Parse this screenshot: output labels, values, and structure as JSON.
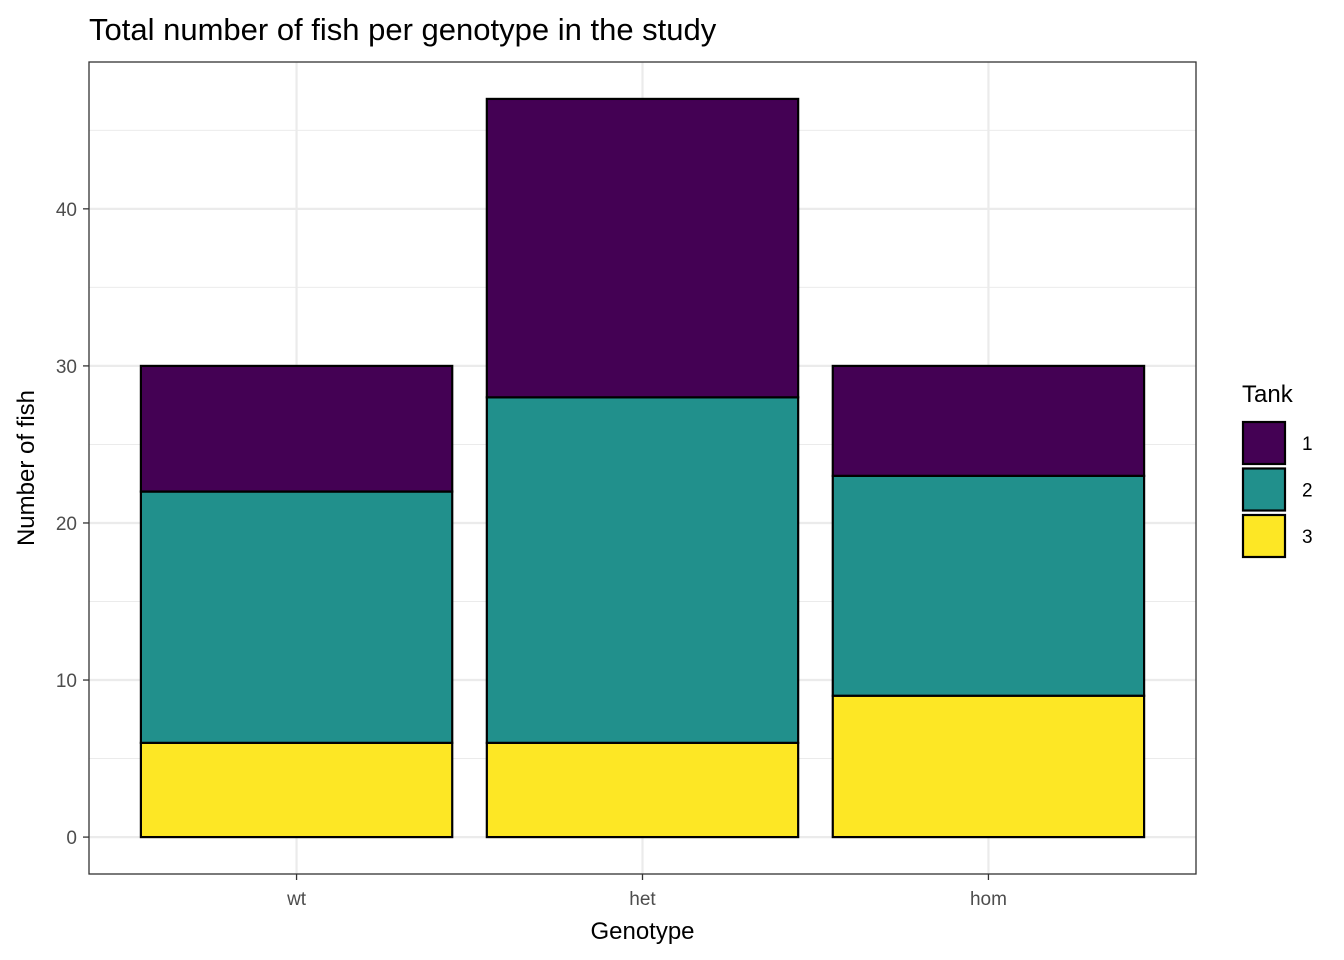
{
  "chart_data": {
    "type": "bar",
    "stacked": true,
    "title": "Total number of fish per genotype in the study",
    "xlabel": "Genotype",
    "ylabel": "Number of fish",
    "categories": [
      "wt",
      "het",
      "hom"
    ],
    "y_ticks": [
      0,
      10,
      20,
      30,
      40
    ],
    "ylim": [
      -2.35,
      49.35
    ],
    "grid": true,
    "legend": {
      "title": "Tank",
      "placement": "right"
    },
    "series": [
      {
        "name": "1",
        "values": [
          8,
          19,
          7
        ],
        "color": "#440154"
      },
      {
        "name": "2",
        "values": [
          16,
          22,
          14
        ],
        "color": "#21908C"
      },
      {
        "name": "3",
        "values": [
          6,
          6,
          9
        ],
        "color": "#FDE725"
      }
    ]
  }
}
